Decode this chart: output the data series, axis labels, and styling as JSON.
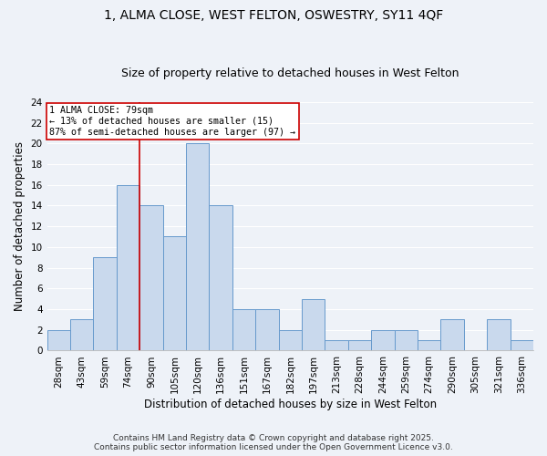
{
  "title": "1, ALMA CLOSE, WEST FELTON, OSWESTRY, SY11 4QF",
  "subtitle": "Size of property relative to detached houses in West Felton",
  "xlabel": "Distribution of detached houses by size in West Felton",
  "ylabel": "Number of detached properties",
  "bin_labels": [
    "28sqm",
    "43sqm",
    "59sqm",
    "74sqm",
    "90sqm",
    "105sqm",
    "120sqm",
    "136sqm",
    "151sqm",
    "167sqm",
    "182sqm",
    "197sqm",
    "213sqm",
    "228sqm",
    "244sqm",
    "259sqm",
    "274sqm",
    "290sqm",
    "305sqm",
    "321sqm",
    "336sqm"
  ],
  "bar_heights": [
    2,
    3,
    9,
    16,
    14,
    11,
    20,
    14,
    4,
    4,
    2,
    5,
    1,
    1,
    2,
    2,
    1,
    3,
    0,
    3,
    1
  ],
  "bar_color": "#c9d9ed",
  "bar_edge_color": "#6699cc",
  "vline_color": "#cc0000",
  "vline_x": 3.5,
  "annotation_text": "1 ALMA CLOSE: 79sqm\n← 13% of detached houses are smaller (15)\n87% of semi-detached houses are larger (97) →",
  "annotation_box_color": "#ffffff",
  "annotation_box_edge": "#cc0000",
  "ylim": [
    0,
    24
  ],
  "yticks": [
    0,
    2,
    4,
    6,
    8,
    10,
    12,
    14,
    16,
    18,
    20,
    22,
    24
  ],
  "footer": "Contains HM Land Registry data © Crown copyright and database right 2025.\nContains public sector information licensed under the Open Government Licence v3.0.",
  "background_color": "#eef2f8",
  "grid_color": "#ffffff",
  "title_fontsize": 10,
  "subtitle_fontsize": 9,
  "axis_fontsize": 8.5,
  "tick_fontsize": 7.5,
  "footer_fontsize": 6.5
}
